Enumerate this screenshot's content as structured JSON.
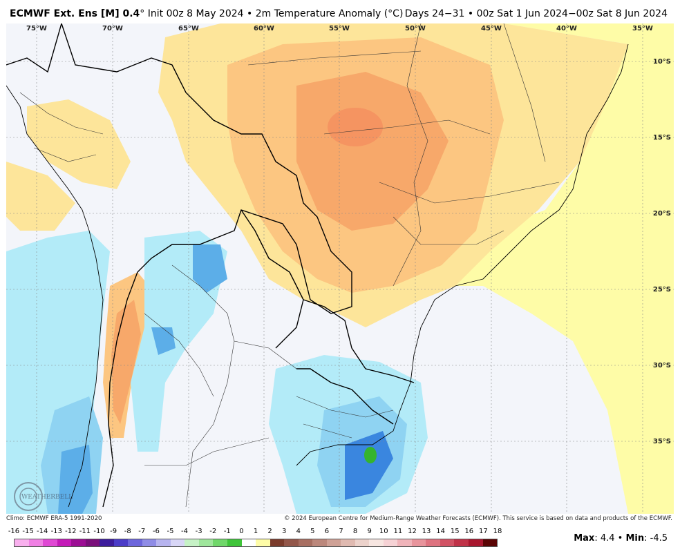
{
  "header": {
    "model": "ECMWF Ext. Ens [M] 0.4",
    "deg": "°",
    "init": "Init 00z 8 May 2024",
    "sep": "•",
    "variable": "2m Temperature Anomaly (°C)",
    "period": "Days 24−31 • 00z Sat 1 Jun 2024−00z Sat 8 Jun 2024"
  },
  "map": {
    "longitudes": [
      "75°W",
      "70°W",
      "65°W",
      "60°W",
      "55°W",
      "50°W",
      "45°W",
      "40°W",
      "35°W"
    ],
    "latitudes": [
      "10°S",
      "15°S",
      "20°S",
      "25°S",
      "30°S",
      "35°S"
    ],
    "logo_text": "WEATHERBELL",
    "colors": {
      "land_neutral": "#f3f5fa",
      "ocean_warm": "#fefca7",
      "warm_light": "#fde59a",
      "warm_mid": "#fcc681",
      "warm_strong": "#f7a86a",
      "warm_peak": "#f59461",
      "cool_light": "#b3ebf8",
      "cool_mid": "#8fd3f2",
      "cool_strong": "#5caee8",
      "cool_deep": "#3a86df",
      "cool_core": "#2a63d4",
      "green_cell": "#35b42d"
    }
  },
  "credits": {
    "climo": "Climo: ECMWF ERA-5 1991-2020",
    "copyright": "© 2024 European Centre for Medium-Range Weather Forecasts (ECMWF). This service is based on data and products of the ECMWF."
  },
  "scale": {
    "labels": [
      "-16",
      "-15",
      "-14",
      "-13",
      "-12",
      "-11",
      "-10",
      "-9",
      "-8",
      "-7",
      "-6",
      "-5",
      "-4",
      "-3",
      "-2",
      "-1",
      "0",
      "1",
      "2",
      "3",
      "4",
      "5",
      "6",
      "7",
      "8",
      "9",
      "10",
      "11",
      "12",
      "13",
      "14",
      "15",
      "16",
      "17",
      "18"
    ],
    "colors": [
      "#f9b0ee",
      "#f080e4",
      "#e048d4",
      "#c41ab8",
      "#9c0e94",
      "#7a0f7a",
      "#3c1c9c",
      "#4b3cc8",
      "#6d66dc",
      "#8f8ce6",
      "#b7b4ef",
      "#d8d6f6",
      "#c6f2c6",
      "#9fe69c",
      "#70d76a",
      "#3fc43a",
      "#1fa71d",
      "#1b5fd3",
      "#3a86df",
      "#5caee8",
      "#8fd3f2",
      "#b3ebf8",
      "#e4f7fd",
      "#ffffff",
      "#fefca7",
      "#fde59a",
      "#fcc681",
      "#f7a86a",
      "#f08050",
      "#e85a3a",
      "#d83428",
      "#c01818",
      "#a00c0c",
      "#7c0808",
      "#5a0404"
    ],
    "colors_high": [
      "#7b3c2c",
      "#93574a",
      "#a86f62",
      "#bc887c",
      "#cfa196",
      "#e0bab1",
      "#ecd2cb",
      "#f7e6e1",
      "#f6d2d5",
      "#f0b4ba",
      "#e8949c",
      "#de7380",
      "#d15264",
      "#c03248",
      "#a8162e"
    ]
  },
  "summary": {
    "max_label": "Max",
    "max_value": ": 4.4",
    "sep": "•",
    "min_label": "Min",
    "min_value": ": -4.5"
  }
}
